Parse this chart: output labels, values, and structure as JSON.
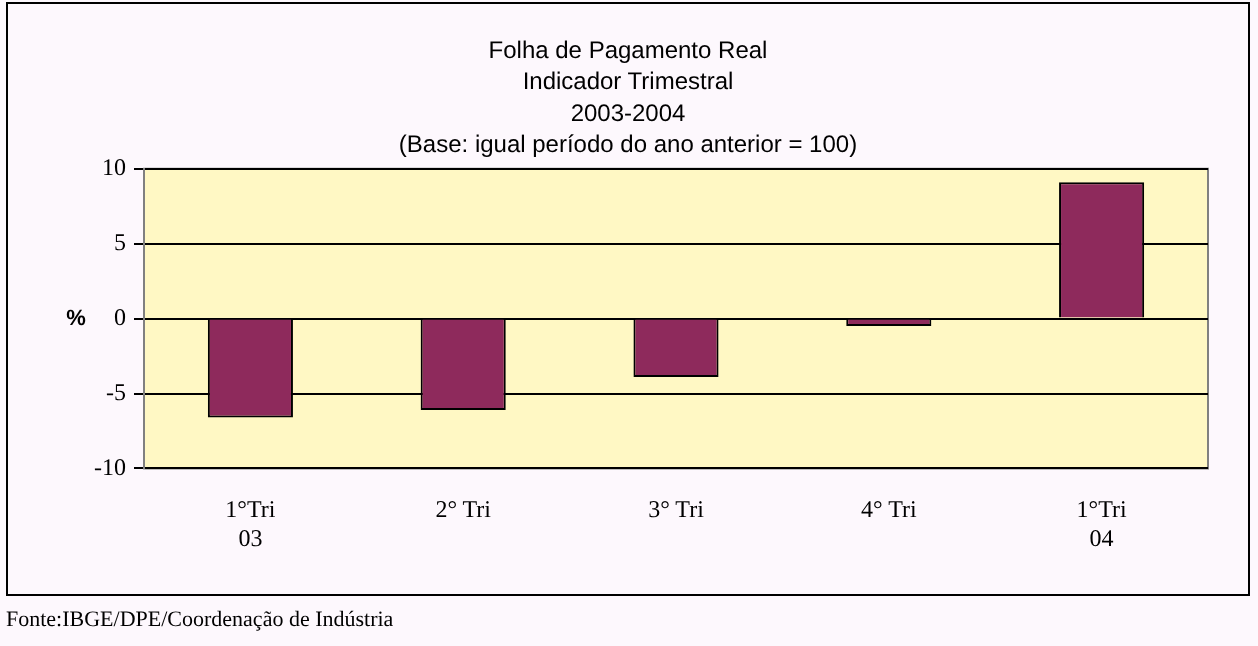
{
  "chart_data": {
    "type": "bar",
    "title": "Folha de Pagamento Real",
    "subtitle": "Indicador Trimestral\n2003-2004\n(Base: igual período do ano anterior = 100)",
    "categories": [
      "1°Tri\n03",
      "2° Tri",
      "3° Tri",
      "4° Tri",
      "1°Tri\n04"
    ],
    "values": [
      -6.6,
      -6.1,
      -3.9,
      -0.5,
      9.1
    ],
    "color": "#8e2a5c",
    "ylabel": "%",
    "ylim": [
      -10,
      10
    ],
    "yticks": [
      -10,
      -5,
      0,
      5,
      10
    ],
    "grid": "y",
    "annotations": [
      "Fonte:IBGE/DPE/Coordenação de Indústria"
    ]
  }
}
